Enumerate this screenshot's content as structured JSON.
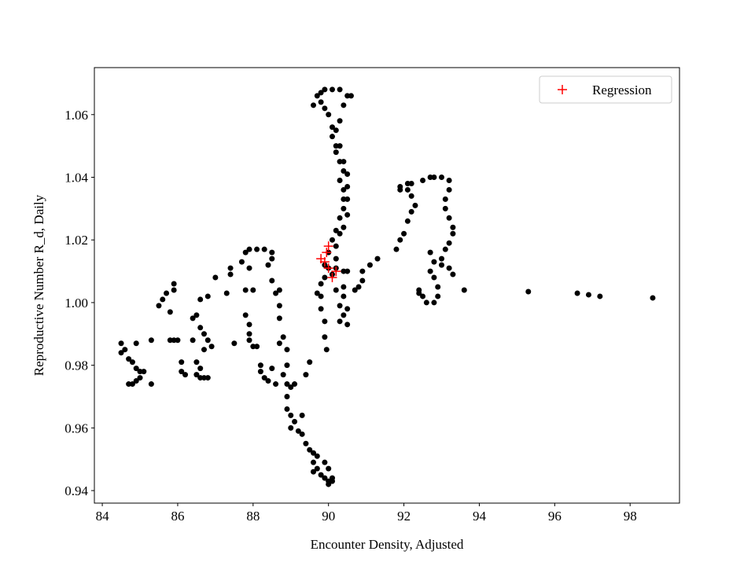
{
  "chart_data": {
    "type": "scatter",
    "xlabel": "Encounter Density, Adjusted",
    "ylabel": "Reproductive Number R_d, Daily",
    "xlim": [
      83.79,
      99.31
    ],
    "ylim": [
      0.936,
      1.075
    ],
    "xticks": [
      84,
      86,
      88,
      90,
      92,
      94,
      96,
      98
    ],
    "yticks": [
      0.94,
      0.96,
      0.98,
      {
        "value": 1,
        "label": "1.00"
      },
      1.02,
      1.04,
      1.06
    ],
    "legend": "upper right",
    "series": [
      {
        "color": "#000000",
        "marker": "o",
        "x": [
          84.5,
          84.6,
          84.5,
          84.7,
          84.8,
          84.9,
          85.0,
          85.1,
          85.0,
          84.9,
          84.8,
          84.7,
          84.9,
          85.3,
          85.3,
          85.5,
          85.6,
          85.7,
          85.9,
          85.9,
          85.8,
          85.8,
          85.9,
          86.0,
          86.1,
          86.1,
          86.2,
          86.4,
          86.4,
          86.5,
          86.5,
          86.5,
          86.6,
          86.6,
          86.7,
          86.8,
          86.6,
          86.7,
          86.7,
          86.8,
          86.9,
          86.8,
          87.0,
          86.6,
          87.3,
          87.4,
          87.4,
          87.5,
          87.7,
          87.8,
          87.9,
          88.1,
          88.3,
          88.5,
          88.5,
          88.4,
          88.5,
          88.6,
          88.7,
          88.7,
          88.8,
          88.7,
          88.9,
          88.9,
          88.5,
          88.3,
          88.2,
          88.4,
          88.6,
          88.8,
          88.9,
          88.9,
          89.0,
          89.1,
          87.9,
          88.0,
          87.8,
          87.8,
          87.9,
          87.9,
          87.9,
          88.0,
          88.1,
          88.2,
          88.7,
          88.9,
          89.0,
          89.0,
          89.1,
          89.2,
          89.3,
          89.4,
          89.5,
          89.6,
          89.6,
          89.7,
          89.6,
          89.8,
          89.9,
          90.0,
          90.1,
          90.0,
          90.1,
          90.0,
          89.9,
          89.7,
          89.3,
          89.5,
          89.4,
          89.7,
          89.8,
          89.8,
          89.9,
          89.9,
          89.95,
          89.8,
          89.9,
          89.9,
          90.0,
          90.1,
          90.0,
          90.1,
          90.2,
          90.3,
          90.4,
          90.4,
          90.4,
          90.3,
          90.4,
          90.3,
          90.2,
          90.2,
          90.1,
          90.1,
          90.0,
          89.9,
          89.8,
          89.6,
          89.7,
          89.8,
          89.9,
          90.1,
          90.3,
          90.5,
          90.6,
          90.4,
          90.3,
          90.2,
          90.3,
          90.4,
          90.5,
          90.5,
          90.5,
          90.5,
          90.4,
          90.3,
          90.2,
          90.2,
          90.2,
          90.4,
          90.5,
          90.4,
          90.4,
          90.5,
          90.4,
          90.5,
          90.3,
          90.3,
          90.2,
          90.7,
          90.8,
          90.9,
          90.9,
          91.1,
          91.3,
          91.8,
          91.9,
          92.0,
          92.1,
          92.2,
          92.3,
          92.2,
          92.1,
          91.9,
          91.9,
          92.1,
          92.2,
          92.5,
          92.7,
          92.8,
          93.0,
          93.2,
          93.2,
          93.1,
          93.1,
          93.2,
          93.3,
          93.3,
          93.2,
          93.1,
          93.0,
          93.0,
          92.8,
          92.7,
          92.7,
          92.8,
          92.9,
          92.9,
          92.8,
          92.6,
          92.5,
          92.4,
          92.4,
          93.3,
          93.2,
          93.6,
          95.3,
          96.6,
          96.9,
          97.2,
          98.6
        ],
        "y": [
          0.987,
          0.985,
          0.984,
          0.982,
          0.981,
          0.979,
          0.978,
          0.978,
          0.976,
          0.975,
          0.974,
          0.974,
          0.987,
          0.974,
          0.988,
          0.999,
          1.001,
          1.003,
          1.006,
          1.004,
          0.997,
          0.988,
          0.988,
          0.988,
          0.978,
          0.981,
          0.977,
          0.988,
          0.995,
          0.996,
          0.981,
          0.977,
          0.976,
          0.979,
          0.976,
          0.976,
          0.992,
          0.99,
          0.985,
          0.988,
          0.986,
          1.002,
          1.008,
          1.001,
          1.003,
          1.011,
          1.009,
          0.987,
          1.013,
          1.016,
          1.017,
          1.017,
          1.017,
          1.016,
          1.014,
          1.012,
          1.007,
          1.003,
          0.999,
          0.995,
          0.989,
          0.987,
          0.985,
          0.98,
          0.979,
          0.976,
          0.98,
          0.975,
          0.974,
          0.977,
          0.974,
          0.97,
          0.973,
          0.974,
          1.011,
          1.004,
          1.004,
          0.996,
          0.993,
          0.99,
          0.988,
          0.986,
          0.986,
          0.978,
          1.004,
          0.966,
          0.964,
          0.96,
          0.962,
          0.959,
          0.958,
          0.955,
          0.953,
          0.952,
          0.949,
          0.947,
          0.946,
          0.945,
          0.944,
          0.943,
          0.943,
          0.942,
          0.944,
          0.947,
          0.949,
          0.951,
          0.964,
          0.981,
          0.977,
          1.003,
          1.002,
          0.998,
          0.994,
          0.989,
          0.985,
          1.006,
          1.008,
          1.012,
          1.011,
          1.009,
          1.016,
          1.02,
          1.023,
          1.027,
          1.03,
          1.033,
          1.036,
          1.039,
          1.042,
          1.045,
          1.048,
          1.05,
          1.053,
          1.056,
          1.06,
          1.062,
          1.064,
          1.063,
          1.066,
          1.067,
          1.068,
          1.068,
          1.068,
          1.066,
          1.066,
          1.063,
          1.058,
          1.055,
          1.05,
          1.045,
          1.041,
          1.037,
          1.033,
          1.028,
          1.024,
          1.022,
          1.018,
          1.014,
          1.011,
          1.01,
          1.01,
          1.005,
          1.002,
          0.998,
          0.996,
          0.993,
          0.994,
          0.999,
          1.004,
          1.004,
          1.005,
          1.007,
          1.01,
          1.012,
          1.014,
          1.017,
          1.02,
          1.022,
          1.026,
          1.029,
          1.031,
          1.034,
          1.036,
          1.037,
          1.036,
          1.038,
          1.038,
          1.039,
          1.04,
          1.04,
          1.04,
          1.039,
          1.036,
          1.033,
          1.03,
          1.027,
          1.024,
          1.022,
          1.019,
          1.017,
          1.014,
          1.012,
          1.013,
          1.016,
          1.01,
          1.008,
          1.005,
          1.002,
          1.0,
          1.0,
          1.002,
          1.003,
          1.004,
          1.009,
          1.011,
          1.004,
          1.0035,
          1.003,
          1.0025,
          1.002,
          1.0015
        ]
      },
      {
        "name": "Regression",
        "color": "#ff0000",
        "marker": "+",
        "x": [
          89.8,
          89.95,
          90.0,
          90.0,
          90.1,
          90.2,
          89.9
        ],
        "y": [
          1.014,
          1.016,
          1.018,
          1.011,
          1.008,
          1.01,
          1.013
        ]
      }
    ]
  }
}
